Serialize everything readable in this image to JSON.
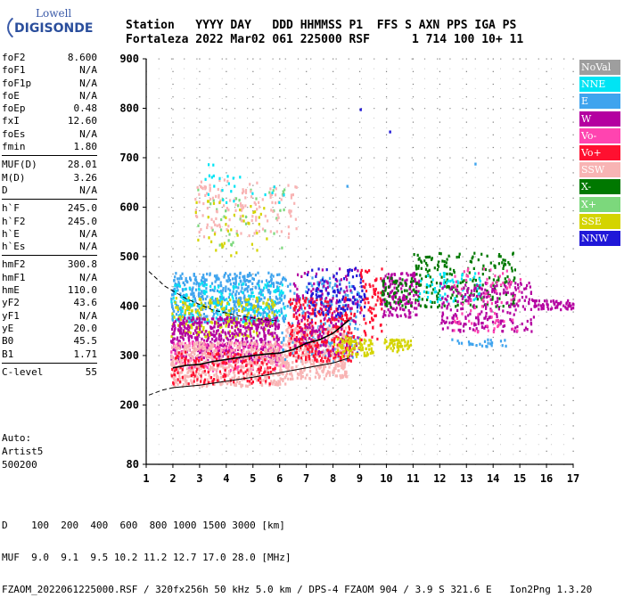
{
  "logo": {
    "line1": "Lowell",
    "line2": "DIGISONDE"
  },
  "header": {
    "labels": [
      "Station",
      "YYYY DAY",
      "DDD HHMMSS P1",
      "FFS S",
      "AXN PPS IGA PS"
    ],
    "values": [
      "Fortaleza",
      "2022 Mar02",
      "061 225000 RSF",
      "1 714",
      "100 10+ 11"
    ]
  },
  "params": [
    {
      "name": "foF2",
      "value": "8.600"
    },
    {
      "name": "foF1",
      "value": "N/A"
    },
    {
      "name": "foF1p",
      "value": "N/A"
    },
    {
      "name": "foE",
      "value": "N/A"
    },
    {
      "name": "foEp",
      "value": "0.48"
    },
    {
      "name": "fxI",
      "value": "12.60"
    },
    {
      "name": "foEs",
      "value": "N/A"
    },
    {
      "name": "fmin",
      "value": "1.80"
    },
    {
      "sep": true
    },
    {
      "name": "MUF(D)",
      "value": "28.01"
    },
    {
      "name": "M(D)",
      "value": "3.26"
    },
    {
      "name": "D",
      "value": "N/A"
    },
    {
      "sep": true
    },
    {
      "name": "h`F",
      "value": "245.0"
    },
    {
      "name": "h`F2",
      "value": "245.0"
    },
    {
      "name": "h`E",
      "value": "N/A"
    },
    {
      "name": "h`Es",
      "value": "N/A"
    },
    {
      "sep": true
    },
    {
      "name": "hmF2",
      "value": "300.8"
    },
    {
      "name": "hmF1",
      "value": "N/A"
    },
    {
      "name": "hmE",
      "value": "110.0"
    },
    {
      "name": "yF2",
      "value": "43.6"
    },
    {
      "name": "yF1",
      "value": "N/A"
    },
    {
      "name": "yE",
      "value": "20.0"
    },
    {
      "name": "B0",
      "value": "45.5"
    },
    {
      "name": "B1",
      "value": "1.71"
    },
    {
      "sep": true
    },
    {
      "name": "C-level",
      "value": "55"
    }
  ],
  "auto": {
    "line1": "Auto:",
    "line2": "Artist5",
    "line3": "500200"
  },
  "legend": [
    {
      "label": "NoVal",
      "color": "#9e9e9e"
    },
    {
      "label": "NNE",
      "color": "#00e4f4"
    },
    {
      "label": "E",
      "color": "#3fa4ee"
    },
    {
      "label": "W",
      "color": "#b400a0"
    },
    {
      "label": "Vo-",
      "color": "#ff44b0"
    },
    {
      "label": "Vo+",
      "color": "#ff1030"
    },
    {
      "label": "SSW",
      "color": "#f8b4b4"
    },
    {
      "label": "X-",
      "color": "#007800"
    },
    {
      "label": "X+",
      "color": "#7cd87c"
    },
    {
      "label": "SSE",
      "color": "#d4d400"
    },
    {
      "label": "NNW",
      "color": "#2018d8"
    }
  ],
  "footer": {
    "line1": "D    100  200  400  600  800 1000 1500 3000 [km]",
    "line2": "MUF  9.0  9.1  9.5 10.2 11.2 12.7 17.0 28.0 [MHz]",
    "line3": "FZAOM_2022061225000.RSF / 320fx256h 50 kHz 5.0 km / DPS-4 FZAOM 904 / 3.9 S 321.6 E   Ion2Png 1.3.20"
  },
  "chart_data": {
    "type": "scatter",
    "xlabel": "",
    "ylabel": "",
    "xlim": [
      1,
      17
    ],
    "ylim": [
      80,
      900
    ],
    "x_ticks": [
      1,
      2,
      3,
      4,
      5,
      6,
      7,
      8,
      9,
      10,
      11,
      12,
      13,
      14,
      15,
      16,
      17
    ],
    "y_ticks": [
      80,
      200,
      300,
      400,
      500,
      600,
      700,
      800,
      900
    ],
    "grid": true,
    "traces": [
      {
        "style": "dashed",
        "points": [
          [
            1.1,
            470
          ],
          [
            1.7,
            440
          ],
          [
            2.5,
            415
          ],
          [
            3.5,
            392
          ],
          [
            4.5,
            380
          ],
          [
            5.5,
            372
          ],
          [
            6.0,
            370
          ]
        ]
      },
      {
        "style": "dashed",
        "points": [
          [
            1.1,
            220
          ],
          [
            1.6,
            230
          ],
          [
            2.0,
            235
          ]
        ]
      },
      {
        "style": "solid",
        "points": [
          [
            2.0,
            235
          ],
          [
            3.0,
            240
          ],
          [
            4.0,
            248
          ],
          [
            5.0,
            256
          ],
          [
            6.0,
            265
          ],
          [
            7.0,
            275
          ],
          [
            8.0,
            285
          ],
          [
            8.6,
            295
          ]
        ]
      },
      {
        "style": "solid_trace",
        "points": [
          [
            2.0,
            275
          ],
          [
            2.5,
            280
          ],
          [
            3.0,
            282
          ],
          [
            3.5,
            288
          ],
          [
            4.0,
            292
          ],
          [
            4.5,
            296
          ],
          [
            5.0,
            300
          ],
          [
            5.5,
            303
          ],
          [
            6.0,
            305
          ],
          [
            6.5,
            312
          ],
          [
            7.0,
            325
          ],
          [
            7.5,
            332
          ],
          [
            8.0,
            345
          ],
          [
            8.3,
            358
          ],
          [
            8.6,
            372
          ]
        ]
      }
    ],
    "clusters": [
      {
        "series": "E",
        "x": [
          1.9,
          6.0
        ],
        "y": [
          370,
          470
        ],
        "n": 520
      },
      {
        "series": "NNE",
        "x": [
          1.9,
          6.2
        ],
        "y": [
          370,
          450
        ],
        "n": 180
      },
      {
        "series": "SSE",
        "x": [
          1.9,
          5.8
        ],
        "y": [
          340,
          420
        ],
        "n": 220
      },
      {
        "series": "W",
        "x": [
          1.9,
          6.0
        ],
        "y": [
          290,
          380
        ],
        "n": 520
      },
      {
        "series": "Vo-",
        "x": [
          1.9,
          6.2
        ],
        "y": [
          270,
          330
        ],
        "n": 220
      },
      {
        "series": "SSW",
        "x": [
          1.9,
          6.2
        ],
        "y": [
          240,
          330
        ],
        "n": 600
      },
      {
        "series": "Vo+",
        "x": [
          1.9,
          5.8
        ],
        "y": [
          245,
          310
        ],
        "n": 160
      },
      {
        "series": "E",
        "x": [
          6.0,
          9.0
        ],
        "y": [
          290,
          460
        ],
        "n": 220
      },
      {
        "series": "SSW",
        "x": [
          6.2,
          8.5
        ],
        "y": [
          255,
          360
        ],
        "n": 380
      },
      {
        "series": "Vo+",
        "x": [
          6.3,
          8.8
        ],
        "y": [
          290,
          420
        ],
        "n": 320
      },
      {
        "series": "W",
        "x": [
          6.5,
          9.0
        ],
        "y": [
          300,
          480
        ],
        "n": 170
      },
      {
        "series": "NNW",
        "x": [
          7.0,
          9.2
        ],
        "y": [
          380,
          480
        ],
        "n": 110
      },
      {
        "series": "SSE",
        "x": [
          8.0,
          9.5
        ],
        "y": [
          300,
          340
        ],
        "n": 80
      },
      {
        "series": "Vo+",
        "x": [
          9.0,
          9.8
        ],
        "y": [
          330,
          480
        ],
        "n": 70
      },
      {
        "series": "W",
        "x": [
          9.8,
          11.2
        ],
        "y": [
          380,
          470
        ],
        "n": 160
      },
      {
        "series": "X-",
        "x": [
          9.8,
          11.0
        ],
        "y": [
          400,
          460
        ],
        "n": 60
      },
      {
        "series": "SSE",
        "x": [
          9.9,
          10.9
        ],
        "y": [
          310,
          335
        ],
        "n": 50
      },
      {
        "series": "X-",
        "x": [
          11.0,
          14.8
        ],
        "y": [
          400,
          510
        ],
        "n": 220
      },
      {
        "series": "NNE",
        "x": [
          11.2,
          13.5
        ],
        "y": [
          410,
          470
        ],
        "n": 60
      },
      {
        "series": "W",
        "x": [
          12.0,
          15.5
        ],
        "y": [
          350,
          450
        ],
        "n": 240
      },
      {
        "series": "Vo-",
        "x": [
          12.5,
          15.0
        ],
        "y": [
          350,
          480
        ],
        "n": 80
      },
      {
        "series": "E",
        "x": [
          12.3,
          14.6
        ],
        "y": [
          320,
          335
        ],
        "n": 25
      },
      {
        "series": "W",
        "x": [
          15.5,
          17.0
        ],
        "y": [
          395,
          415
        ],
        "n": 60
      },
      {
        "series": "X+",
        "x": [
          2.8,
          6.2
        ],
        "y": [
          520,
          650
        ],
        "n": 40
      },
      {
        "series": "SSW",
        "x": [
          2.8,
          6.6
        ],
        "y": [
          540,
          660
        ],
        "n": 140
      },
      {
        "series": "SSE",
        "x": [
          2.8,
          5.5
        ],
        "y": [
          500,
          620
        ],
        "n": 40
      },
      {
        "series": "NNE",
        "x": [
          3.0,
          6.2
        ],
        "y": [
          600,
          690
        ],
        "n": 25
      }
    ],
    "outliers": [
      {
        "series": "NNW",
        "x": 9.0,
        "y": 800
      },
      {
        "series": "NNW",
        "x": 10.1,
        "y": 755
      },
      {
        "series": "E",
        "x": 13.3,
        "y": 690
      },
      {
        "series": "E",
        "x": 8.5,
        "y": 645
      }
    ]
  }
}
